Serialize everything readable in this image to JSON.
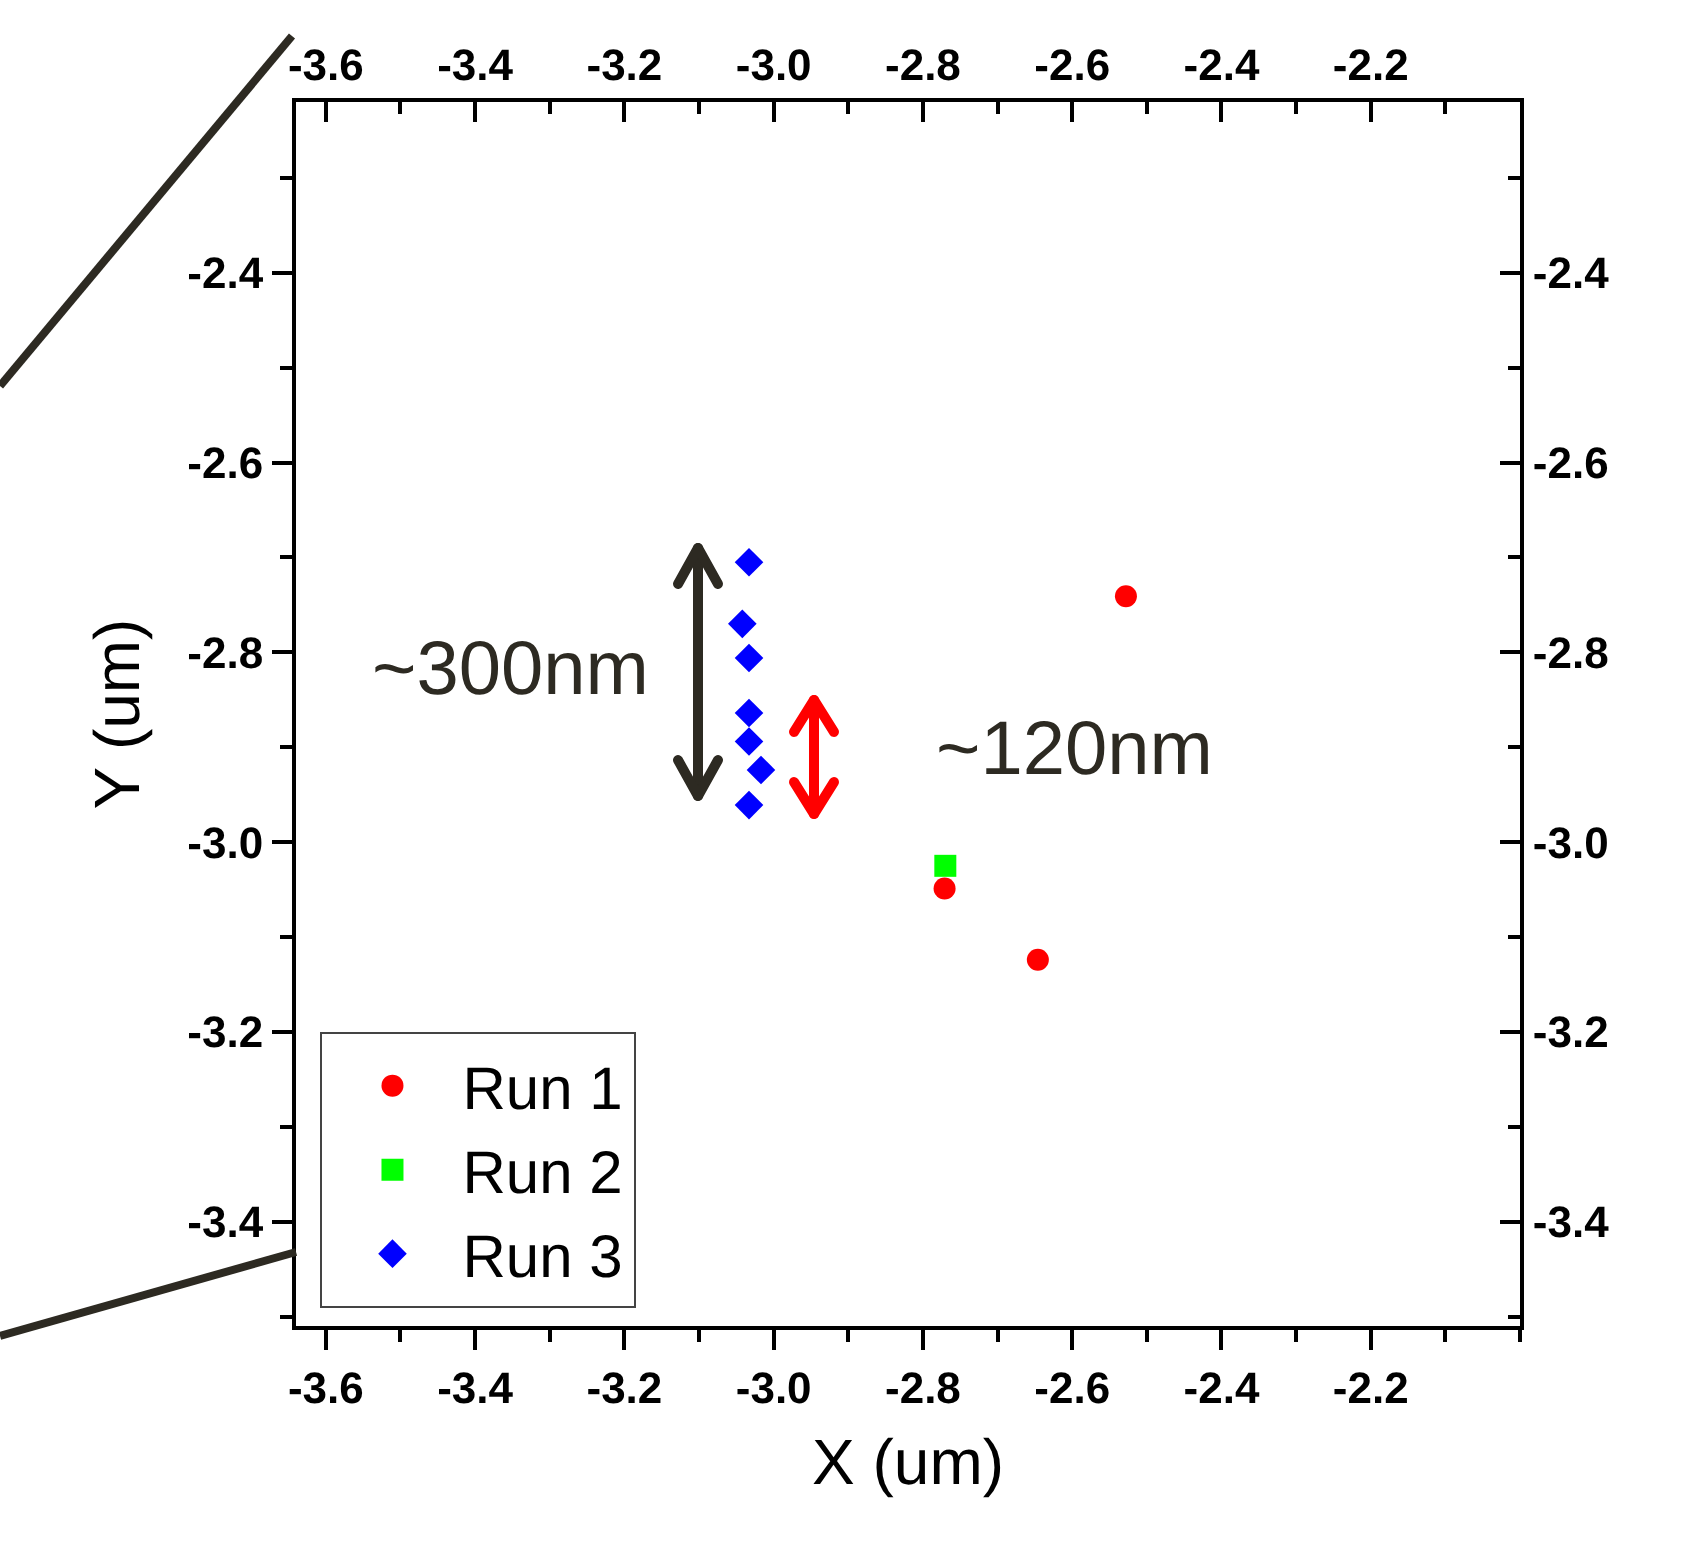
{
  "chart_data": {
    "type": "scatter",
    "xlabel": "X (um)",
    "ylabel": "Y (um)",
    "series": [
      {
        "name": "Run 1",
        "color": "#ff0000",
        "marker": "circle",
        "x": [
          -2.528,
          -2.771,
          -2.646
        ],
        "values": [
          -2.741,
          -3.049,
          -3.124
        ]
      },
      {
        "name": "Run 2",
        "color": "#00ff00",
        "marker": "square",
        "x": [
          -2.77
        ],
        "values": [
          -3.025
        ]
      },
      {
        "name": "Run 3",
        "color": "#0000ff",
        "marker": "diamond",
        "x": [
          -3.033,
          -3.042,
          -3.033,
          -3.033,
          -3.033,
          -3.017,
          -3.033
        ],
        "values": [
          -2.705,
          -2.77,
          -2.806,
          -2.864,
          -2.894,
          -2.924,
          -2.961
        ]
      }
    ],
    "xlim": [
      -3.64,
      -2.0
    ],
    "xticks": [
      {
        "value": -3.6,
        "label": "-3.6"
      },
      {
        "value": -3.4,
        "label": "-3.4"
      },
      {
        "value": -3.2,
        "label": "-3.2"
      },
      {
        "value": -3.0,
        "label": "-3.0"
      },
      {
        "value": -2.8,
        "label": "-2.8"
      },
      {
        "value": -2.6,
        "label": "-2.6"
      },
      {
        "value": -2.4,
        "label": "-2.4"
      },
      {
        "value": -2.2,
        "label": "-2.2"
      }
    ],
    "x2lim": [
      -3.64,
      -2.0
    ],
    "x2ticks": [
      {
        "value": -3.6,
        "label": "-3.6"
      },
      {
        "value": -3.4,
        "label": "-3.4"
      },
      {
        "value": -3.2,
        "label": "-3.2"
      },
      {
        "value": -3.0,
        "label": "-3.0"
      },
      {
        "value": -2.8,
        "label": "-2.8"
      },
      {
        "value": -2.6,
        "label": "-2.6"
      },
      {
        "value": -2.4,
        "label": "-2.4"
      },
      {
        "value": -2.2,
        "label": "-2.2"
      }
    ],
    "ylim": [
      -3.51,
      -2.22
    ],
    "yticks": [
      {
        "value": -3.4,
        "label": "-3.4"
      },
      {
        "value": -3.2,
        "label": "-3.2"
      },
      {
        "value": -3.0,
        "label": "-3.0"
      },
      {
        "value": -2.8,
        "label": "-2.8"
      },
      {
        "value": -2.6,
        "label": "-2.6"
      },
      {
        "value": -2.4,
        "label": "-2.4"
      }
    ],
    "y2lim": [
      -3.51,
      -2.22
    ],
    "y2ticks": [
      {
        "value": -3.4,
        "label": "-3.4"
      },
      {
        "value": -3.2,
        "label": "-3.2"
      },
      {
        "value": -3.0,
        "label": "-3.0"
      },
      {
        "value": -2.8,
        "label": "-2.8"
      },
      {
        "value": -2.6,
        "label": "-2.6"
      },
      {
        "value": -2.4,
        "label": "-2.4"
      }
    ],
    "annotations": [
      "~300nm",
      "~120nm"
    ],
    "grid": false,
    "legend": "bottom left"
  }
}
